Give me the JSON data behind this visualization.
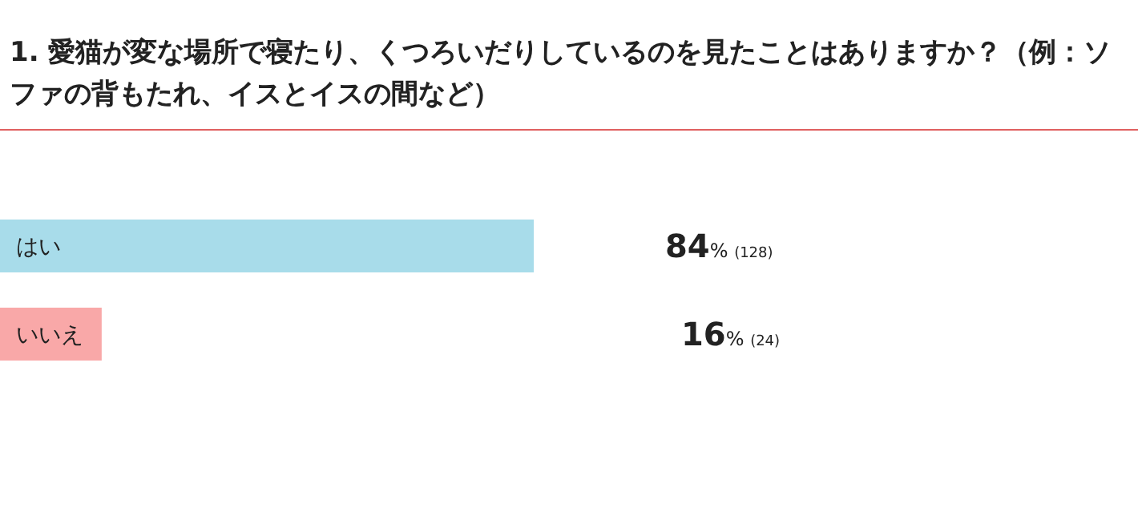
{
  "chart_data": {
    "type": "bar",
    "orientation": "horizontal",
    "title": "1. 愛猫が変な場所で寝たり、くつろいだりしているのを見たことはありますか？（例：ソファの背もたれ、イスとイスの間など）",
    "categories": [
      "はい",
      "いいえ"
    ],
    "values": [
      84,
      16
    ],
    "colors": [
      "#a8dcea",
      "#f9a8a8"
    ],
    "value_labels": [
      "84% (128)",
      "16% (24)"
    ]
  }
}
